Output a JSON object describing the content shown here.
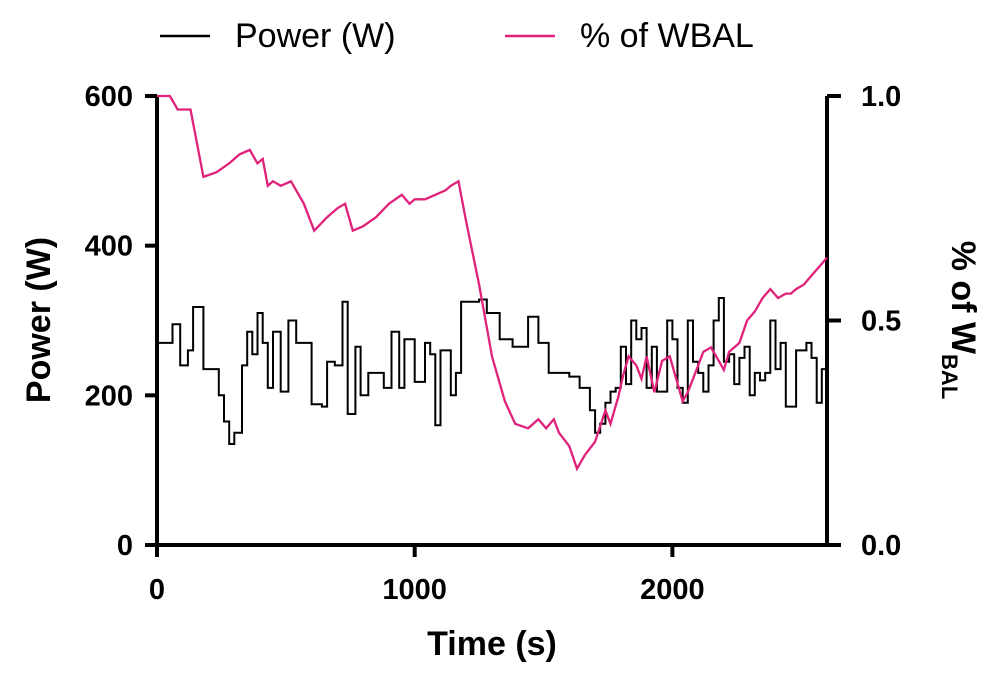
{
  "chart_data": {
    "type": "line",
    "title": "",
    "xlabel": "Time (s)",
    "ylabel": "Power (W)",
    "y2label": {
      "main": "% of W",
      "sub": "BAL"
    },
    "xlim": [
      0,
      2600
    ],
    "ylim": [
      0,
      600
    ],
    "y2lim": [
      0.0,
      1.0
    ],
    "xticks": [
      "0",
      "1000",
      "2000"
    ],
    "yticks": [
      "0",
      "200",
      "400",
      "600"
    ],
    "y2ticks": [
      "0.0",
      "0.5",
      "1.0"
    ],
    "grid": false,
    "legend_position": "top",
    "colors": {
      "power": "#000000",
      "wbal": "#e0227a"
    },
    "series": [
      {
        "name": "Power (W)",
        "axis": "left",
        "step": true,
        "x": [
          0,
          60,
          90,
          120,
          140,
          180,
          240,
          260,
          280,
          300,
          330,
          350,
          370,
          390,
          410,
          430,
          450,
          480,
          510,
          540,
          600,
          640,
          660,
          690,
          720,
          740,
          770,
          790,
          820,
          850,
          880,
          910,
          940,
          960,
          1000,
          1040,
          1060,
          1080,
          1100,
          1140,
          1160,
          1180,
          1220,
          1250,
          1280,
          1330,
          1380,
          1440,
          1480,
          1520,
          1560,
          1600,
          1640,
          1680,
          1700,
          1720,
          1740,
          1760,
          1780,
          1800,
          1820,
          1840,
          1860,
          1880,
          1900,
          1920,
          1940,
          1980,
          2000,
          2020,
          2040,
          2060,
          2080,
          2100,
          2120,
          2140,
          2160,
          2180,
          2200,
          2220,
          2240,
          2260,
          2280,
          2300,
          2320,
          2340,
          2360,
          2380,
          2400,
          2420,
          2440,
          2480,
          2520,
          2540,
          2560,
          2580,
          2600
        ],
        "values": [
          270,
          295,
          240,
          260,
          318,
          235,
          200,
          165,
          135,
          150,
          240,
          285,
          255,
          310,
          270,
          210,
          285,
          205,
          300,
          270,
          188,
          185,
          245,
          240,
          325,
          175,
          265,
          200,
          230,
          230,
          210,
          285,
          210,
          275,
          218,
          270,
          255,
          160,
          260,
          200,
          230,
          325,
          325,
          328,
          310,
          275,
          265,
          305,
          270,
          230,
          230,
          225,
          210,
          180,
          150,
          162,
          190,
          205,
          210,
          265,
          215,
          300,
          275,
          290,
          210,
          265,
          205,
          300,
          275,
          210,
          190,
          300,
          245,
          230,
          205,
          240,
          300,
          330,
          245,
          255,
          215,
          250,
          265,
          200,
          230,
          220,
          230,
          300,
          235,
          270,
          185,
          260,
          270,
          250,
          190,
          235,
          235
        ]
      },
      {
        "name": "% of WBAL",
        "axis": "right",
        "step": false,
        "x": [
          0,
          50,
          80,
          130,
          180,
          230,
          280,
          320,
          360,
          390,
          410,
          430,
          450,
          480,
          520,
          570,
          610,
          660,
          700,
          730,
          760,
          800,
          850,
          900,
          950,
          980,
          1000,
          1040,
          1080,
          1120,
          1140,
          1170,
          1200,
          1250,
          1300,
          1350,
          1390,
          1440,
          1480,
          1510,
          1540,
          1560,
          1600,
          1630,
          1660,
          1700,
          1740,
          1760,
          1790,
          1810,
          1830,
          1860,
          1880,
          1900,
          1930,
          1960,
          1990,
          2020,
          2040,
          2060,
          2100,
          2120,
          2150,
          2180,
          2200,
          2220,
          2260,
          2290,
          2320,
          2350,
          2380,
          2410,
          2440,
          2460,
          2480,
          2510,
          2540,
          2570,
          2600
        ],
        "values": [
          1.0,
          1.0,
          0.97,
          0.97,
          0.82,
          0.83,
          0.85,
          0.87,
          0.88,
          0.85,
          0.86,
          0.8,
          0.81,
          0.8,
          0.81,
          0.76,
          0.7,
          0.73,
          0.75,
          0.76,
          0.7,
          0.71,
          0.73,
          0.76,
          0.78,
          0.76,
          0.77,
          0.77,
          0.78,
          0.79,
          0.8,
          0.81,
          0.72,
          0.58,
          0.42,
          0.32,
          0.27,
          0.26,
          0.28,
          0.26,
          0.28,
          0.25,
          0.22,
          0.17,
          0.2,
          0.23,
          0.3,
          0.27,
          0.33,
          0.38,
          0.42,
          0.4,
          0.37,
          0.42,
          0.34,
          0.41,
          0.42,
          0.36,
          0.32,
          0.34,
          0.4,
          0.43,
          0.44,
          0.41,
          0.39,
          0.43,
          0.45,
          0.5,
          0.52,
          0.55,
          0.57,
          0.55,
          0.56,
          0.56,
          0.57,
          0.58,
          0.6,
          0.62,
          0.64
        ]
      }
    ]
  }
}
